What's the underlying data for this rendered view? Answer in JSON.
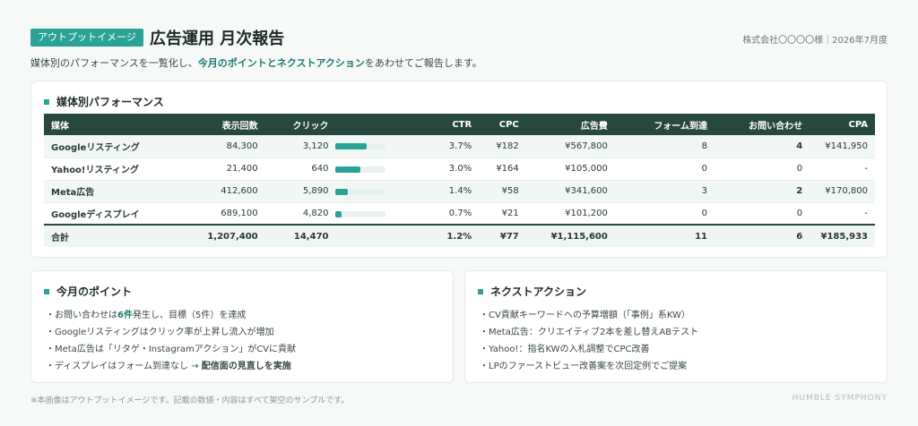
{
  "header": {
    "badge": "アウトプットイメージ",
    "title": "広告運用 月次報告",
    "client": "株式会社〇〇〇〇様｜2026年7月度"
  },
  "subtitle": {
    "pre": "媒体別のパフォーマンスを一覧化し、",
    "highlight": "今月のポイントとネクストアクション",
    "post": "をあわせてご報告します。"
  },
  "performance": {
    "title": "媒体別パフォーマンス",
    "columns": [
      "媒体",
      "表示回数",
      "クリック",
      "CTR",
      "CPC",
      "広告費",
      "フォーム到達",
      "お問い合わせ",
      "CPA"
    ],
    "rows": [
      {
        "media": "Googleリスティング",
        "imp": "84,300",
        "click": "3,120",
        "ctr": "3.7%",
        "ctr_value": 3.7,
        "cpc": "¥182",
        "cost": "¥567,800",
        "form": "8",
        "inquiry": "4",
        "cpa": "¥141,950"
      },
      {
        "media": "Yahoo!リスティング",
        "imp": "21,400",
        "click": "640",
        "ctr": "3.0%",
        "ctr_value": 3.0,
        "cpc": "¥164",
        "cost": "¥105,000",
        "form": "0",
        "inquiry": "0",
        "cpa": "-"
      },
      {
        "media": "Meta広告",
        "imp": "412,600",
        "click": "5,890",
        "ctr": "1.4%",
        "ctr_value": 1.4,
        "cpc": "¥58",
        "cost": "¥341,600",
        "form": "3",
        "inquiry": "2",
        "cpa": "¥170,800"
      },
      {
        "media": "Googleディスプレイ",
        "imp": "689,100",
        "click": "4,820",
        "ctr": "0.7%",
        "ctr_value": 0.7,
        "cpc": "¥21",
        "cost": "¥101,200",
        "form": "0",
        "inquiry": "0",
        "cpa": "-"
      }
    ],
    "total": {
      "media": "合計",
      "imp": "1,207,400",
      "click": "14,470",
      "ctr": "1.2%",
      "cpc": "¥77",
      "cost": "¥1,115,600",
      "form": "11",
      "inquiry": "6",
      "cpa": "¥185,933"
    }
  },
  "points": {
    "title": "今月のポイント",
    "items": [
      {
        "pre": "・お問い合わせは",
        "strong": "6件",
        "post": "発生し、目標（5件）を達成"
      },
      {
        "pre": "・Googleリスティングはクリック率が上昇し流入が増加",
        "strong": "",
        "post": ""
      },
      {
        "pre": "・Meta広告は「リタゲ・Instagramアクション」がCVに貢献",
        "strong": "",
        "post": ""
      },
      {
        "pre": "・ディスプレイはフォーム到達なし → ",
        "strong": "配信面の見直しを実施",
        "post": ""
      }
    ]
  },
  "actions": {
    "title": "ネクストアクション",
    "items": [
      "・CV貢献キーワードへの予算増額（「事例」系KW）",
      "・Meta広告：クリエイティブ2本を差し替えABテスト",
      "・Yahoo!：指名KWの入札調整でCPC改善",
      "・LPのファーストビュー改善案を次回定例でご提案"
    ]
  },
  "footer": {
    "note": "※本画像はアウトプットイメージです。記載の数値・内容はすべて架空のサンプルです。",
    "brand": "HUMBLE SYMPHONY"
  },
  "colors": {
    "accent": "#2aa396",
    "header_bg": "#27483f"
  }
}
